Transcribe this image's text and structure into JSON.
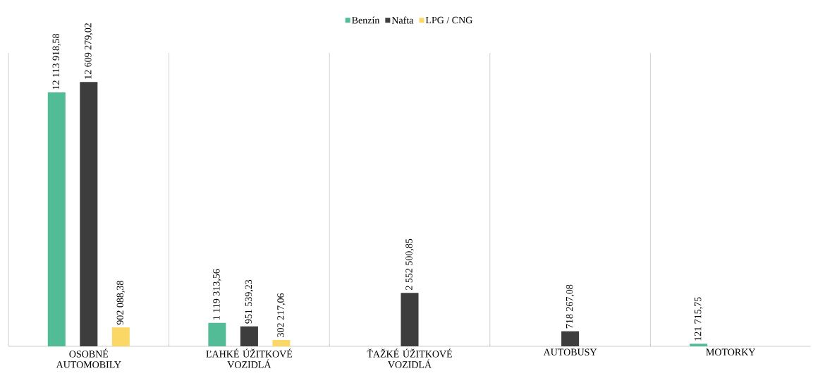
{
  "chart_data": {
    "type": "bar",
    "categories": [
      "OSOBNÉ AUTOMOBILY",
      "ĽAHKÉ ÚŽITKOVÉ VOZIDLÁ",
      "ŤAŽKÉ ÚŽITKOVÉ VOZIDLÁ",
      "AUTOBUSY",
      "MOTORKY"
    ],
    "series": [
      {
        "name": "Benzín",
        "color": "#52bc97",
        "values": [
          12113918.58,
          1119313.56,
          null,
          null,
          121715.75
        ],
        "value_labels": [
          "12 113 918,58",
          "1 119 313,56",
          null,
          null,
          "121 715,75"
        ]
      },
      {
        "name": "Nafta",
        "color": "#3d3d3d",
        "values": [
          12609279.02,
          951539.23,
          2552500.85,
          718267.08,
          null
        ],
        "value_labels": [
          "12 609 279,02",
          "951 539,23",
          "2 552 500,85",
          "718 267,08",
          null
        ]
      },
      {
        "name": "LPG / CNG",
        "color": "#fbd865",
        "values": [
          902088.38,
          302217.06,
          null,
          null,
          null
        ],
        "value_labels": [
          "902 088,38",
          "302 217,06",
          null,
          null,
          null
        ]
      }
    ],
    "ylim": [
      0,
      14000000
    ],
    "grid": "x",
    "legend": "top"
  }
}
